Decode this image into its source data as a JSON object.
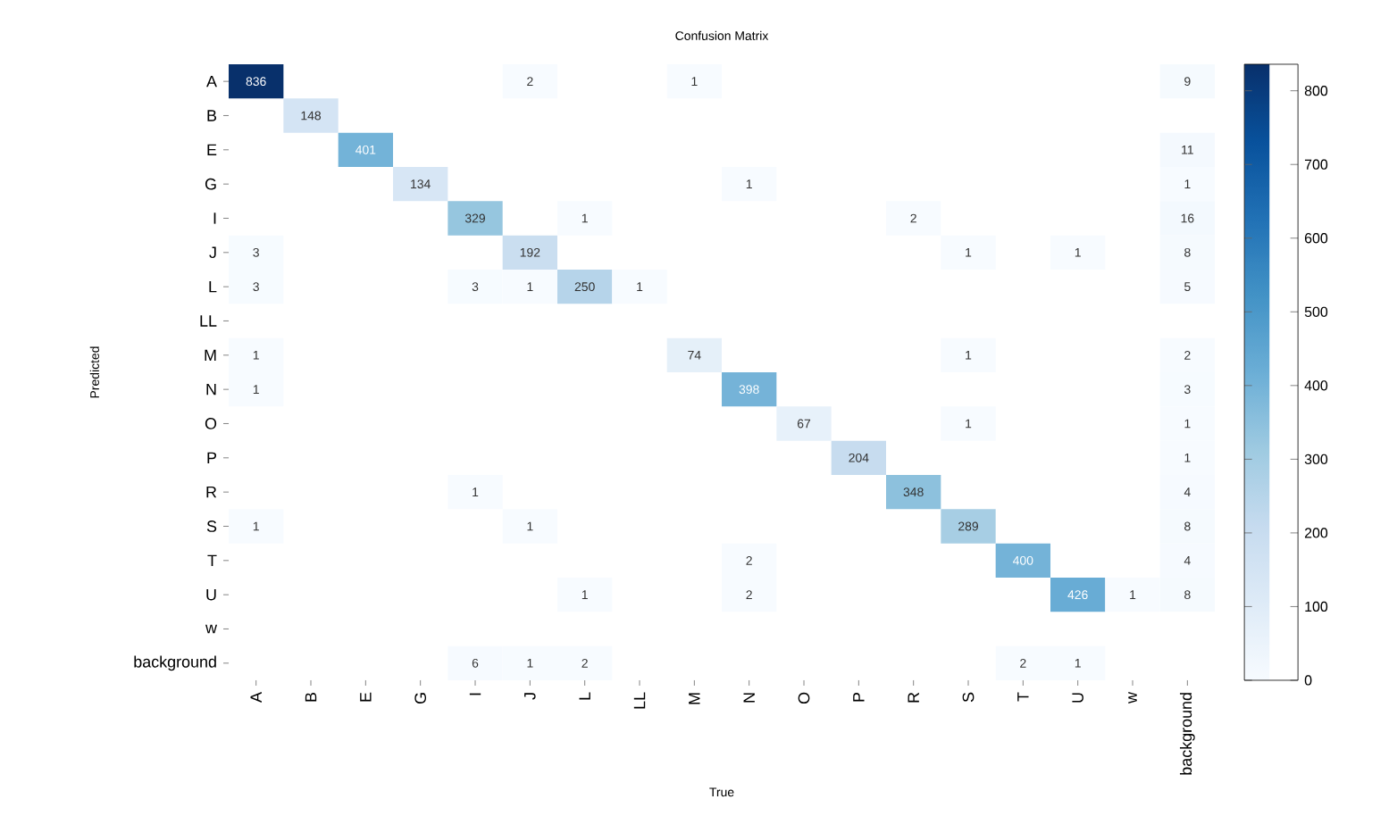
{
  "chart_data": {
    "type": "heatmap",
    "title": "Confusion Matrix",
    "xlabel": "True",
    "ylabel": "Predicted",
    "categories": [
      "A",
      "B",
      "E",
      "G",
      "I",
      "J",
      "L",
      "LL",
      "M",
      "N",
      "O",
      "P",
      "R",
      "S",
      "T",
      "U",
      "w",
      "background"
    ],
    "y_categories": [
      "A",
      "B",
      "E",
      "G",
      "I",
      "J",
      "L",
      "LL",
      "M",
      "N",
      "O",
      "P",
      "R",
      "S",
      "T",
      "U",
      "w",
      "background"
    ],
    "cells": [
      [
        836,
        null,
        null,
        null,
        null,
        2,
        null,
        null,
        1,
        null,
        null,
        null,
        null,
        null,
        null,
        null,
        null,
        9
      ],
      [
        null,
        148,
        null,
        null,
        null,
        null,
        null,
        null,
        null,
        null,
        null,
        null,
        null,
        null,
        null,
        null,
        null,
        null
      ],
      [
        null,
        null,
        401,
        null,
        null,
        null,
        null,
        null,
        null,
        null,
        null,
        null,
        null,
        null,
        null,
        null,
        null,
        11
      ],
      [
        null,
        null,
        null,
        134,
        null,
        null,
        null,
        null,
        null,
        1,
        null,
        null,
        null,
        null,
        null,
        null,
        null,
        1
      ],
      [
        null,
        null,
        null,
        null,
        329,
        null,
        1,
        null,
        null,
        null,
        null,
        null,
        2,
        null,
        null,
        null,
        null,
        16
      ],
      [
        3,
        null,
        null,
        null,
        null,
        192,
        null,
        null,
        null,
        null,
        null,
        null,
        null,
        1,
        null,
        1,
        null,
        8
      ],
      [
        3,
        null,
        null,
        null,
        3,
        1,
        250,
        1,
        null,
        null,
        null,
        null,
        null,
        null,
        null,
        null,
        null,
        5
      ],
      [
        null,
        null,
        null,
        null,
        null,
        null,
        null,
        null,
        null,
        null,
        null,
        null,
        null,
        null,
        null,
        null,
        null,
        null
      ],
      [
        1,
        null,
        null,
        null,
        null,
        null,
        null,
        null,
        74,
        null,
        null,
        null,
        null,
        1,
        null,
        null,
        null,
        2
      ],
      [
        1,
        null,
        null,
        null,
        null,
        null,
        null,
        null,
        null,
        398,
        null,
        null,
        null,
        null,
        null,
        null,
        null,
        3
      ],
      [
        null,
        null,
        null,
        null,
        null,
        null,
        null,
        null,
        null,
        null,
        67,
        null,
        null,
        1,
        null,
        null,
        null,
        1
      ],
      [
        null,
        null,
        null,
        null,
        null,
        null,
        null,
        null,
        null,
        null,
        null,
        204,
        null,
        null,
        null,
        null,
        null,
        1
      ],
      [
        null,
        null,
        null,
        null,
        1,
        null,
        null,
        null,
        null,
        null,
        null,
        null,
        348,
        null,
        null,
        null,
        null,
        4
      ],
      [
        1,
        null,
        null,
        null,
        null,
        1,
        null,
        null,
        null,
        null,
        null,
        null,
        null,
        289,
        null,
        null,
        null,
        8
      ],
      [
        null,
        null,
        null,
        null,
        null,
        null,
        null,
        null,
        null,
        2,
        null,
        null,
        null,
        null,
        400,
        null,
        null,
        4
      ],
      [
        null,
        null,
        null,
        null,
        null,
        null,
        1,
        null,
        null,
        2,
        null,
        null,
        null,
        null,
        null,
        426,
        1,
        8
      ],
      [
        null,
        null,
        null,
        null,
        null,
        null,
        null,
        null,
        null,
        null,
        null,
        null,
        null,
        null,
        null,
        null,
        null,
        null
      ],
      [
        null,
        null,
        null,
        null,
        6,
        1,
        2,
        null,
        null,
        null,
        null,
        null,
        null,
        null,
        2,
        1,
        null,
        null
      ]
    ],
    "clim": [
      0,
      836
    ],
    "cticks": [
      0,
      100,
      200,
      300,
      400,
      500,
      600,
      700,
      800
    ],
    "data_labels": true
  }
}
